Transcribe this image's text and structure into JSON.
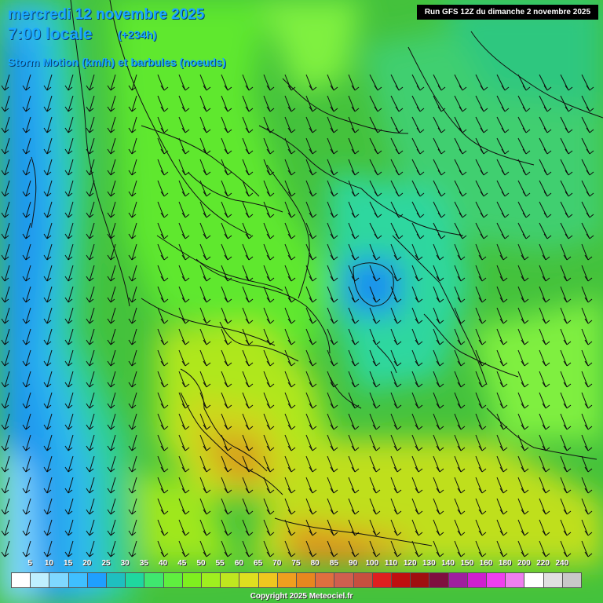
{
  "header": {
    "date": "mercredi 12 novembre 2025",
    "time": "7:00 locale",
    "lead": "(+234h)",
    "subtitle": "Storm Motion (km/h) et barbules (noeuds)",
    "run": "Run GFS 12Z du dimanche 2 novembre 2025"
  },
  "legend": {
    "labels": [
      "5",
      "10",
      "15",
      "20",
      "25",
      "30",
      "35",
      "40",
      "45",
      "50",
      "55",
      "60",
      "65",
      "70",
      "75",
      "80",
      "85",
      "90",
      "100",
      "110",
      "120",
      "130",
      "140",
      "150",
      "160",
      "180",
      "200",
      "220",
      "240"
    ],
    "colors": [
      "#ffffff",
      "#bfefff",
      "#7fd7ff",
      "#3fbfff",
      "#1f9fff",
      "#1fbfbf",
      "#1fd79f",
      "#3fe76f",
      "#5fef3f",
      "#7fef1f",
      "#9fef1f",
      "#bfe71f",
      "#dfdf1f",
      "#efc71f",
      "#ef9f1f",
      "#e7871f",
      "#df6f3f",
      "#cf5f4f",
      "#c74f3f",
      "#df1f1f",
      "#bf0f0f",
      "#9f0f0f",
      "#7f0f3f",
      "#9f1f9f",
      "#cf1fcf",
      "#ef3fef",
      "#ef7fef",
      "#ffffff",
      "#e0e0e0",
      "#c8c8c8"
    ]
  },
  "copyright": "Copyright 2025 Meteociel.fr"
}
